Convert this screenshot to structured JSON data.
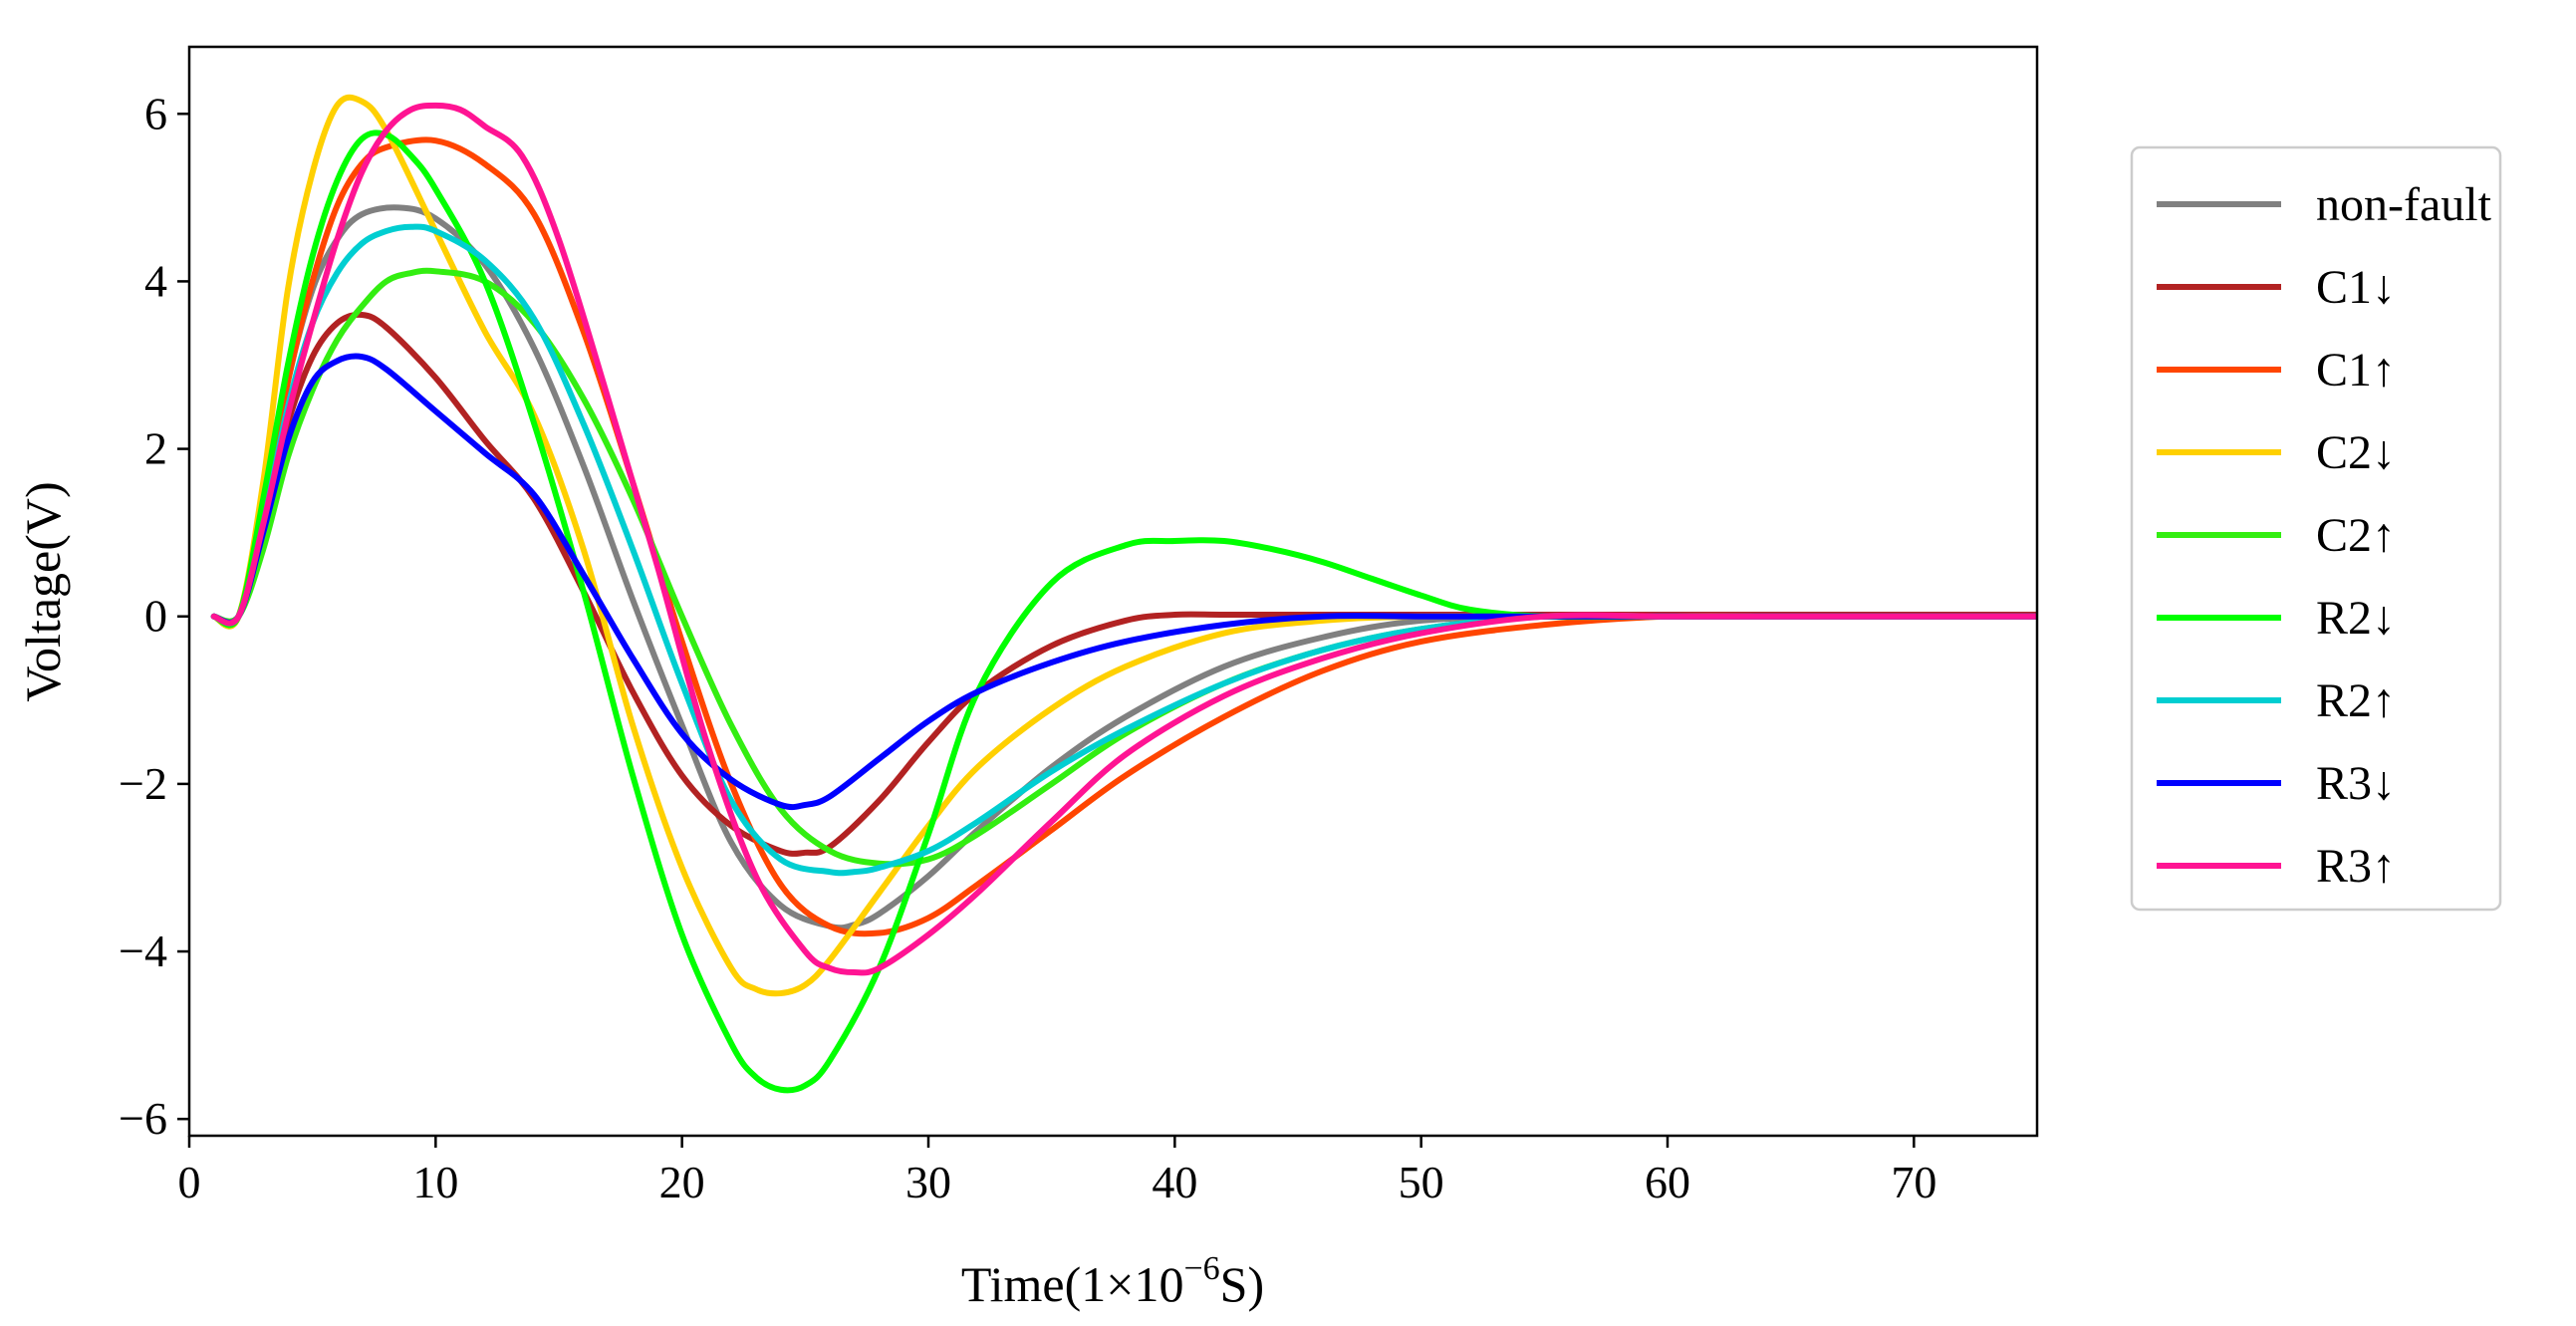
{
  "chart_data": {
    "type": "line",
    "title": "",
    "xlabel": "Time(1×10",
    "xlabel_exponent": "−6",
    "xlabel_suffix": "S)",
    "ylabel": "Voltage(V)",
    "xlim": [
      0,
      75
    ],
    "ylim": [
      -6.2,
      6.8
    ],
    "grid": false,
    "legend_position": "right-outside-top",
    "xticks": [
      0,
      10,
      20,
      30,
      40,
      50,
      60,
      70
    ],
    "xtick_labels": [
      "0",
      "10",
      "20",
      "30",
      "40",
      "50",
      "60",
      "70"
    ],
    "yticks": [
      -6,
      -4,
      -2,
      0,
      2,
      4,
      6
    ],
    "ytick_labels": [
      "−6",
      "−4",
      "−2",
      "0",
      "2",
      "4",
      "6"
    ],
    "series": [
      {
        "name": "non-fault",
        "color": "#808080",
        "x": [
          1,
          2,
          3,
          4,
          5,
          6,
          7,
          8.5,
          10,
          12,
          14,
          16,
          18,
          20,
          22,
          24,
          26,
          27,
          28,
          30,
          32,
          35,
          38,
          42,
          46,
          50,
          55,
          60,
          65,
          70,
          75
        ],
        "y": [
          0,
          0,
          1.2,
          2.8,
          3.9,
          4.5,
          4.8,
          4.88,
          4.75,
          4.2,
          3.2,
          1.8,
          0.2,
          -1.3,
          -2.7,
          -3.45,
          -3.7,
          -3.68,
          -3.55,
          -3.1,
          -2.55,
          -1.8,
          -1.2,
          -0.6,
          -0.25,
          -0.05,
          0,
          0,
          0,
          0,
          0
        ]
      },
      {
        "name": "C1↓",
        "color": "#b22222",
        "x": [
          1,
          2,
          3,
          4,
          5,
          6,
          7,
          8,
          10,
          12,
          14,
          16,
          18,
          20,
          22,
          24,
          25,
          26,
          28,
          30,
          32,
          35,
          38,
          40,
          42,
          45,
          50,
          55,
          60,
          65,
          70,
          75
        ],
        "y": [
          0,
          0,
          1.1,
          2.3,
          3.1,
          3.5,
          3.6,
          3.45,
          2.85,
          2.1,
          1.4,
          0.3,
          -0.9,
          -1.9,
          -2.5,
          -2.8,
          -2.82,
          -2.75,
          -2.2,
          -1.5,
          -0.9,
          -0.35,
          -0.05,
          0.02,
          0.02,
          0.02,
          0.02,
          0.02,
          0.02,
          0.02,
          0.02,
          0.02
        ]
      },
      {
        "name": "C1↑",
        "color": "#ff4500",
        "x": [
          1,
          2,
          3,
          4,
          5,
          6,
          7,
          8,
          10,
          12,
          14,
          16,
          18,
          20,
          22,
          24,
          26,
          28,
          30,
          32,
          35,
          38,
          42,
          46,
          50,
          55,
          60,
          65,
          70,
          75
        ],
        "y": [
          0,
          0,
          1.3,
          2.8,
          4.0,
          4.9,
          5.4,
          5.6,
          5.68,
          5.4,
          4.8,
          3.4,
          1.6,
          -0.3,
          -2.0,
          -3.2,
          -3.7,
          -3.78,
          -3.6,
          -3.2,
          -2.55,
          -1.9,
          -1.2,
          -0.65,
          -0.3,
          -0.1,
          0,
          0,
          0,
          0
        ]
      },
      {
        "name": "C2↓",
        "color": "#ffd000",
        "x": [
          1,
          2,
          3,
          4,
          5,
          6,
          7,
          8,
          10,
          12,
          14,
          16,
          18,
          20,
          22,
          23,
          24,
          25,
          26,
          28,
          30,
          32,
          35,
          38,
          42,
          46,
          50,
          55,
          60,
          65,
          70,
          75
        ],
        "y": [
          0,
          0,
          1.6,
          3.9,
          5.3,
          6.1,
          6.15,
          5.8,
          4.6,
          3.4,
          2.4,
          0.8,
          -1.3,
          -3.0,
          -4.2,
          -4.45,
          -4.5,
          -4.4,
          -4.1,
          -3.3,
          -2.5,
          -1.8,
          -1.1,
          -0.6,
          -0.2,
          -0.05,
          0,
          0,
          0,
          0,
          0,
          0
        ]
      },
      {
        "name": "C2↑",
        "color": "#33ee11",
        "x": [
          1,
          2,
          3,
          4,
          5,
          6,
          7,
          8,
          9,
          10,
          12,
          14,
          16,
          18,
          20,
          22,
          24,
          26,
          28,
          30,
          32,
          35,
          38,
          42,
          46,
          50,
          55,
          60,
          65,
          70,
          75
        ],
        "y": [
          0,
          0,
          0.8,
          1.9,
          2.7,
          3.3,
          3.7,
          4.0,
          4.1,
          4.12,
          4.0,
          3.5,
          2.6,
          1.4,
          0.0,
          -1.3,
          -2.3,
          -2.8,
          -2.95,
          -2.9,
          -2.6,
          -2.0,
          -1.4,
          -0.8,
          -0.4,
          -0.15,
          0,
          0,
          0,
          0,
          0
        ]
      },
      {
        "name": "R2↓",
        "color": "#00ff00",
        "x": [
          1,
          2,
          3,
          4,
          5,
          6,
          7,
          8,
          9,
          10,
          12,
          14,
          16,
          18,
          20,
          22,
          23,
          24,
          25,
          26,
          28,
          30,
          32,
          35,
          38,
          40,
          42,
          44,
          46,
          48,
          50,
          52,
          55,
          60,
          65,
          70,
          75
        ],
        "y": [
          0,
          0,
          1.4,
          3.0,
          4.3,
          5.2,
          5.7,
          5.75,
          5.5,
          5.1,
          4.0,
          2.3,
          0.3,
          -1.9,
          -3.8,
          -5.1,
          -5.5,
          -5.65,
          -5.6,
          -5.3,
          -4.2,
          -2.6,
          -0.9,
          0.4,
          0.85,
          0.9,
          0.9,
          0.8,
          0.65,
          0.45,
          0.25,
          0.08,
          0,
          0,
          0,
          0,
          0
        ]
      },
      {
        "name": "R2↑",
        "color": "#00ced1",
        "x": [
          1,
          2,
          3,
          4,
          5,
          6,
          7,
          8,
          9,
          10,
          12,
          14,
          16,
          18,
          20,
          22,
          24,
          26,
          27,
          28,
          30,
          32,
          35,
          38,
          42,
          46,
          50,
          55,
          60,
          65,
          70,
          75
        ],
        "y": [
          0,
          0,
          1.1,
          2.5,
          3.5,
          4.1,
          4.45,
          4.6,
          4.65,
          4.6,
          4.25,
          3.55,
          2.3,
          0.8,
          -0.8,
          -2.2,
          -2.9,
          -3.05,
          -3.05,
          -3.0,
          -2.8,
          -2.45,
          -1.85,
          -1.35,
          -0.8,
          -0.4,
          -0.15,
          0,
          0,
          0,
          0,
          0
        ]
      },
      {
        "name": "R3↓",
        "color": "#0000ff",
        "x": [
          1,
          2,
          3,
          4,
          5,
          6,
          7,
          8,
          10,
          12,
          14,
          16,
          18,
          20,
          22,
          24,
          25,
          26,
          28,
          30,
          32,
          35,
          38,
          42,
          46,
          50,
          55,
          60,
          65,
          70,
          75
        ],
        "y": [
          0,
          0,
          1.0,
          2.1,
          2.8,
          3.05,
          3.1,
          2.95,
          2.45,
          1.95,
          1.45,
          0.5,
          -0.5,
          -1.4,
          -1.95,
          -2.25,
          -2.25,
          -2.15,
          -1.7,
          -1.25,
          -0.9,
          -0.55,
          -0.3,
          -0.1,
          0,
          0,
          0,
          0,
          0,
          0,
          0
        ]
      },
      {
        "name": "R3↑",
        "color": "#ff1493",
        "x": [
          1,
          2,
          3,
          4,
          5,
          6,
          7,
          8,
          9,
          10,
          11,
          12,
          13.5,
          15,
          17,
          19,
          21,
          23,
          25,
          26,
          27,
          28,
          30,
          32,
          35,
          38,
          42,
          46,
          50,
          55,
          60,
          65,
          70,
          75
        ],
        "y": [
          0,
          0,
          1.1,
          2.4,
          3.5,
          4.5,
          5.3,
          5.8,
          6.05,
          6.1,
          6.05,
          5.85,
          5.5,
          4.5,
          2.6,
          0.6,
          -1.5,
          -3.1,
          -4.0,
          -4.2,
          -4.25,
          -4.2,
          -3.8,
          -3.3,
          -2.45,
          -1.65,
          -0.95,
          -0.5,
          -0.2,
          0,
          0,
          0,
          0,
          0
        ]
      }
    ]
  }
}
